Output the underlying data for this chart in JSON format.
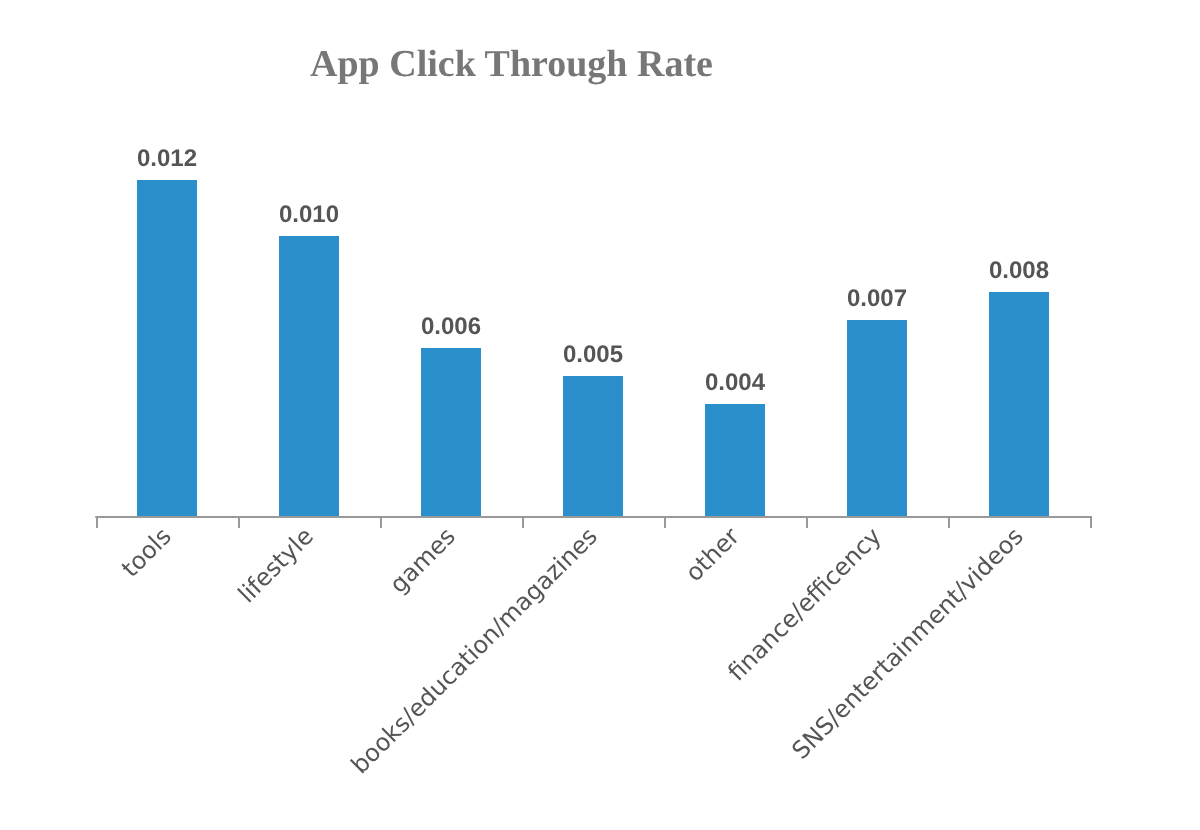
{
  "chart_data": {
    "type": "bar",
    "title": "App Click Through Rate",
    "categories": [
      "tools",
      "lifestyle",
      "games",
      "books/education/magazines",
      "other",
      "finance/efficency",
      "SNS/entertainment/videos"
    ],
    "values": [
      0.012,
      0.01,
      0.006,
      0.005,
      0.004,
      0.007,
      0.008
    ],
    "value_labels": [
      "0.012",
      "0.010",
      "0.006",
      "0.005",
      "0.004",
      "0.007",
      "0.008"
    ],
    "color": "#2b8fcc"
  }
}
